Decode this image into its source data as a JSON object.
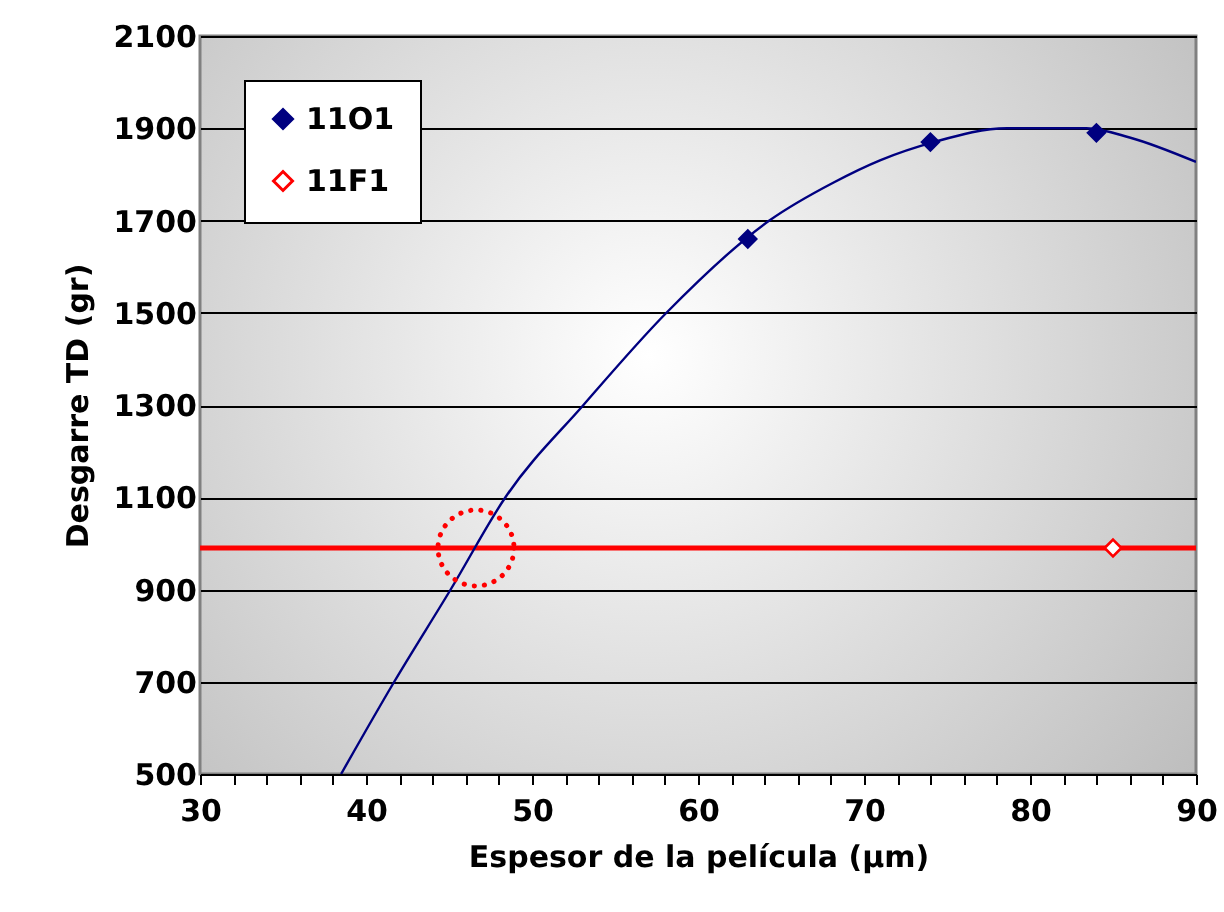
{
  "chart_data": {
    "type": "scatter",
    "xlabel": "Espesor de la película (µm)",
    "ylabel": "Desgarre TD (gr)",
    "xlim": [
      30,
      90
    ],
    "xticks": [
      30,
      {
        "value": 32,
        "label": null
      },
      {
        "value": 34,
        "label": null
      },
      {
        "value": 36,
        "label": null
      },
      {
        "value": 38,
        "label": null
      },
      40,
      {
        "value": 42,
        "label": null
      },
      {
        "value": 44,
        "label": null
      },
      {
        "value": 46,
        "label": null
      },
      {
        "value": 48,
        "label": null
      },
      50,
      {
        "value": 52,
        "label": null
      },
      {
        "value": 54,
        "label": null
      },
      {
        "value": 56,
        "label": null
      },
      {
        "value": 58,
        "label": null
      },
      60,
      {
        "value": 62,
        "label": null
      },
      {
        "value": 64,
        "label": null
      },
      {
        "value": 66,
        "label": null
      },
      {
        "value": 68,
        "label": null
      },
      70,
      {
        "value": 72,
        "label": null
      },
      {
        "value": 74,
        "label": null
      },
      {
        "value": 76,
        "label": null
      },
      {
        "value": 78,
        "label": null
      },
      80,
      {
        "value": 82,
        "label": null
      },
      {
        "value": 84,
        "label": null
      },
      {
        "value": 86,
        "label": null
      },
      {
        "value": 88,
        "label": null
      },
      90
    ],
    "ylim": [
      500,
      2100
    ],
    "yticks": [
      500,
      700,
      900,
      1100,
      1300,
      1500,
      1700,
      1900,
      2100
    ],
    "grid": "y",
    "legend": "top left",
    "series": [
      {
        "name": "11O1",
        "color": "#000080",
        "marker": "diamond",
        "x": [
          63,
          74,
          84
        ],
        "values": [
          1660,
          1870,
          1890
        ]
      },
      {
        "name": "11F1",
        "color": "#ff0000",
        "marker": "diamond",
        "x": [
          85
        ],
        "values": [
          990
        ]
      },
      {
        "type": "line",
        "color": "#000080",
        "marker": "none",
        "x": [
          38.5,
          41.7,
          45.1,
          48.4,
          53.1,
          58.1,
          64.3,
          68.2,
          71,
          74.2,
          78.6,
          83.4,
          86,
          90
        ],
        "values": [
          500,
          700,
          900,
          1100,
          1300,
          1500,
          1700,
          1783,
          1831,
          1870,
          1900,
          1900,
          1880,
          1827
        ]
      }
    ],
    "ref_lines": [
      {
        "axis": "y",
        "value": 990,
        "color": "#ff0000"
      }
    ]
  }
}
